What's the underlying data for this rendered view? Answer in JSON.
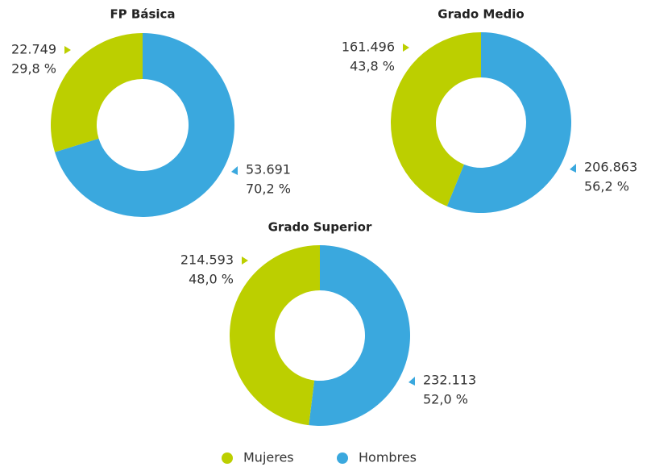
{
  "legend": [
    {
      "name": "Mujeres",
      "color": "#bccf00"
    },
    {
      "name": "Hombres",
      "color": "#3aa8de"
    }
  ],
  "chart_data": [
    {
      "type": "donut",
      "title": "FP Básica",
      "values": [
        22749,
        53691
      ],
      "value_labels": [
        "22.749",
        "53.691"
      ],
      "percentages": [
        29.8,
        70.2
      ],
      "percentage_labels": [
        "29,8 %",
        "70,2 %"
      ]
    },
    {
      "type": "donut",
      "title": "Grado Medio",
      "values": [
        161496,
        206863
      ],
      "value_labels": [
        "161.496",
        "206.863"
      ],
      "percentages": [
        43.8,
        56.2
      ],
      "percentage_labels": [
        "43,8 %",
        "56,2 %"
      ]
    },
    {
      "type": "donut",
      "title": "Grado Superior",
      "values": [
        214593,
        232113
      ],
      "value_labels": [
        "214.593",
        "232.113"
      ],
      "percentages": [
        48.0,
        52.0
      ],
      "percentage_labels": [
        "48,0 %",
        "52,0 %"
      ]
    }
  ]
}
